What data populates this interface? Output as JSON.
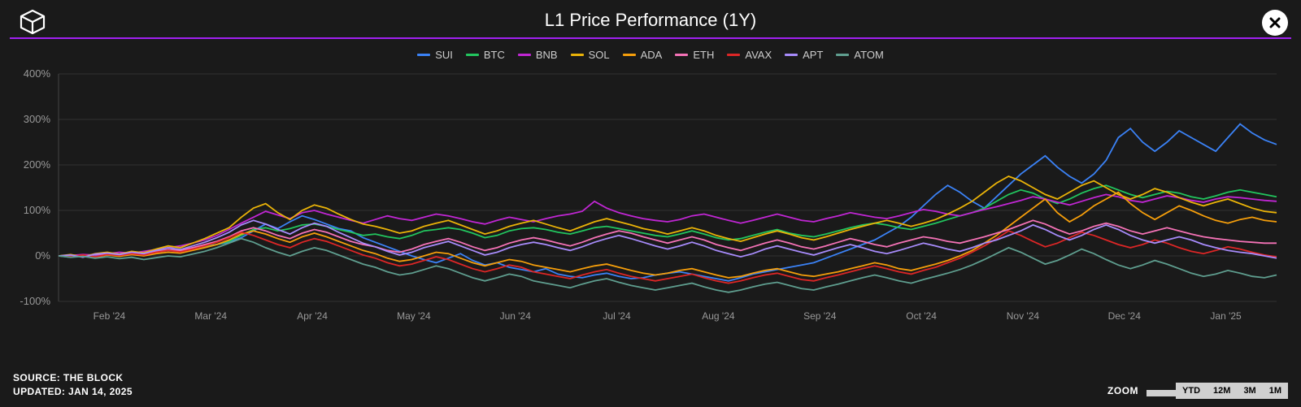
{
  "title": "L1 Price Performance (1Y)",
  "divider_color": "#a020f0",
  "background_color": "#1a1a1a",
  "chart": {
    "type": "line",
    "ylim": [
      -100,
      400
    ],
    "ytick_step": 100,
    "y_ticks": [
      -100,
      0,
      100,
      200,
      300,
      400
    ],
    "y_tick_labels": [
      "-100%",
      "0%",
      "100%",
      "200%",
      "300%",
      "400%"
    ],
    "x_labels": [
      "Feb '24",
      "Mar '24",
      "Apr '24",
      "May '24",
      "Jun '24",
      "Jul '24",
      "Aug '24",
      "Sep '24",
      "Oct '24",
      "Nov '24",
      "Dec '24",
      "Jan '25"
    ],
    "grid_color": "#333333",
    "axis_color": "#444444",
    "tick_label_color": "#999999",
    "line_width": 1.8,
    "series": [
      {
        "name": "SUI",
        "color": "#3b82f6",
        "data": [
          0,
          -3,
          2,
          -1,
          5,
          3,
          8,
          5,
          10,
          14,
          12,
          18,
          22,
          25,
          30,
          40,
          55,
          70,
          60,
          75,
          88,
          80,
          70,
          60,
          55,
          40,
          30,
          20,
          10,
          0,
          -8,
          -15,
          -5,
          5,
          -10,
          -20,
          -15,
          -25,
          -30,
          -35,
          -28,
          -40,
          -45,
          -48,
          -42,
          -38,
          -45,
          -50,
          -48,
          -42,
          -38,
          -35,
          -40,
          -45,
          -50,
          -55,
          -48,
          -40,
          -35,
          -30,
          -25,
          -20,
          -15,
          -5,
          5,
          15,
          25,
          35,
          50,
          65,
          85,
          110,
          135,
          155,
          140,
          120,
          105,
          130,
          155,
          180,
          200,
          220,
          195,
          175,
          160,
          180,
          210,
          260,
          280,
          250,
          230,
          250,
          275,
          260,
          245,
          230,
          260,
          290,
          270,
          255,
          245
        ]
      },
      {
        "name": "BTC",
        "color": "#22c55e",
        "data": [
          0,
          2,
          -1,
          3,
          5,
          2,
          6,
          4,
          8,
          12,
          10,
          15,
          20,
          25,
          32,
          45,
          58,
          62,
          55,
          60,
          68,
          70,
          65,
          58,
          52,
          45,
          48,
          42,
          38,
          45,
          55,
          58,
          62,
          58,
          50,
          40,
          45,
          55,
          60,
          62,
          58,
          52,
          48,
          55,
          62,
          65,
          60,
          55,
          50,
          45,
          42,
          48,
          55,
          48,
          40,
          35,
          38,
          45,
          52,
          58,
          50,
          45,
          42,
          48,
          55,
          62,
          68,
          72,
          68,
          62,
          58,
          65,
          72,
          80,
          88,
          95,
          105,
          120,
          135,
          145,
          138,
          125,
          115,
          125,
          138,
          148,
          155,
          145,
          135,
          128,
          135,
          142,
          138,
          130,
          125,
          132,
          140,
          145,
          140,
          135,
          130
        ]
      },
      {
        "name": "BNB",
        "color": "#c026d3",
        "data": [
          0,
          1,
          3,
          2,
          5,
          8,
          6,
          10,
          14,
          18,
          22,
          28,
          35,
          45,
          58,
          72,
          85,
          98,
          90,
          82,
          95,
          100,
          92,
          85,
          78,
          72,
          80,
          88,
          82,
          78,
          85,
          92,
          88,
          82,
          75,
          70,
          78,
          85,
          80,
          75,
          82,
          88,
          92,
          98,
          120,
          105,
          95,
          88,
          82,
          78,
          75,
          80,
          88,
          92,
          85,
          78,
          72,
          78,
          85,
          92,
          85,
          78,
          75,
          82,
          88,
          95,
          90,
          85,
          82,
          88,
          95,
          102,
          98,
          92,
          88,
          95,
          102,
          108,
          115,
          122,
          130,
          125,
          118,
          112,
          120,
          128,
          135,
          130,
          122,
          118,
          125,
          132,
          128,
          122,
          118,
          125,
          130,
          128,
          125,
          122,
          120
        ]
      },
      {
        "name": "SOL",
        "color": "#eab308",
        "data": [
          0,
          3,
          -2,
          5,
          8,
          4,
          10,
          7,
          15,
          22,
          18,
          28,
          38,
          50,
          62,
          85,
          105,
          115,
          95,
          80,
          100,
          112,
          105,
          92,
          80,
          70,
          65,
          58,
          50,
          55,
          65,
          72,
          78,
          68,
          58,
          48,
          55,
          65,
          72,
          78,
          70,
          62,
          55,
          65,
          75,
          82,
          75,
          68,
          60,
          55,
          48,
          55,
          62,
          55,
          45,
          38,
          32,
          40,
          48,
          55,
          48,
          40,
          35,
          42,
          50,
          58,
          65,
          72,
          78,
          72,
          65,
          72,
          80,
          92,
          105,
          120,
          140,
          160,
          175,
          165,
          150,
          135,
          125,
          140,
          155,
          165,
          150,
          135,
          125,
          135,
          148,
          140,
          128,
          118,
          110,
          118,
          125,
          115,
          105,
          98,
          95
        ]
      },
      {
        "name": "ADA",
        "color": "#f59e0b",
        "data": [
          0,
          -2,
          1,
          -3,
          2,
          -1,
          3,
          0,
          5,
          8,
          6,
          12,
          18,
          25,
          35,
          48,
          55,
          48,
          38,
          30,
          42,
          50,
          42,
          32,
          22,
          12,
          5,
          -5,
          -12,
          -8,
          0,
          8,
          5,
          -5,
          -15,
          -22,
          -15,
          -8,
          -12,
          -20,
          -25,
          -30,
          -35,
          -28,
          -22,
          -18,
          -25,
          -32,
          -38,
          -42,
          -38,
          -32,
          -28,
          -35,
          -42,
          -48,
          -45,
          -38,
          -32,
          -28,
          -35,
          -42,
          -45,
          -40,
          -35,
          -28,
          -22,
          -15,
          -20,
          -28,
          -32,
          -25,
          -18,
          -10,
          0,
          12,
          28,
          45,
          65,
          85,
          105,
          125,
          95,
          75,
          90,
          110,
          125,
          140,
          115,
          95,
          80,
          95,
          110,
          100,
          88,
          78,
          72,
          80,
          85,
          78,
          75
        ]
      },
      {
        "name": "ETH",
        "color": "#f472b6",
        "data": [
          0,
          1,
          -2,
          3,
          5,
          2,
          6,
          4,
          9,
          14,
          11,
          18,
          25,
          32,
          42,
          55,
          62,
          55,
          45,
          38,
          50,
          58,
          52,
          42,
          32,
          25,
          20,
          12,
          8,
          15,
          25,
          32,
          38,
          30,
          20,
          12,
          18,
          28,
          35,
          40,
          35,
          28,
          22,
          30,
          40,
          48,
          55,
          50,
          42,
          35,
          28,
          35,
          42,
          35,
          25,
          18,
          12,
          20,
          28,
          35,
          28,
          20,
          15,
          22,
          30,
          38,
          32,
          25,
          20,
          28,
          35,
          42,
          38,
          32,
          28,
          35,
          42,
          50,
          58,
          68,
          78,
          70,
          58,
          48,
          55,
          65,
          72,
          65,
          55,
          48,
          55,
          62,
          55,
          48,
          42,
          38,
          35,
          32,
          30,
          28,
          28
        ]
      },
      {
        "name": "AVAX",
        "color": "#dc2626",
        "data": [
          0,
          -1,
          2,
          -2,
          3,
          1,
          5,
          2,
          8,
          12,
          9,
          15,
          22,
          30,
          40,
          52,
          45,
          35,
          25,
          18,
          30,
          38,
          32,
          22,
          12,
          2,
          -5,
          -15,
          -22,
          -18,
          -10,
          -2,
          -8,
          -18,
          -28,
          -35,
          -28,
          -20,
          -25,
          -35,
          -40,
          -45,
          -50,
          -42,
          -35,
          -30,
          -38,
          -45,
          -50,
          -55,
          -50,
          -45,
          -40,
          -48,
          -55,
          -60,
          -55,
          -48,
          -42,
          -38,
          -45,
          -52,
          -55,
          -48,
          -42,
          -35,
          -28,
          -22,
          -28,
          -35,
          -40,
          -32,
          -25,
          -15,
          -5,
          8,
          22,
          38,
          55,
          45,
          32,
          20,
          28,
          40,
          52,
          45,
          35,
          25,
          18,
          25,
          35,
          28,
          18,
          10,
          5,
          12,
          20,
          15,
          8,
          2,
          -2
        ]
      },
      {
        "name": "APT",
        "color": "#a78bfa",
        "data": [
          0,
          2,
          -3,
          4,
          6,
          3,
          8,
          5,
          12,
          18,
          14,
          22,
          30,
          40,
          52,
          68,
          78,
          70,
          58,
          48,
          62,
          72,
          65,
          52,
          40,
          28,
          20,
          10,
          2,
          8,
          18,
          25,
          32,
          22,
          12,
          2,
          8,
          18,
          25,
          30,
          25,
          18,
          12,
          20,
          30,
          38,
          45,
          38,
          30,
          22,
          15,
          22,
          30,
          22,
          12,
          5,
          -2,
          5,
          15,
          22,
          15,
          8,
          2,
          10,
          18,
          25,
          18,
          10,
          5,
          12,
          20,
          28,
          22,
          15,
          10,
          18,
          28,
          35,
          45,
          55,
          68,
          58,
          45,
          35,
          45,
          58,
          68,
          58,
          45,
          35,
          28,
          35,
          42,
          35,
          25,
          18,
          12,
          8,
          5,
          0,
          -5
        ]
      },
      {
        "name": "ATOM",
        "color": "#5f9e8f",
        "data": [
          0,
          -3,
          -1,
          -5,
          -2,
          -6,
          -3,
          -8,
          -4,
          0,
          -2,
          4,
          10,
          18,
          28,
          38,
          30,
          18,
          8,
          0,
          10,
          18,
          12,
          2,
          -8,
          -18,
          -25,
          -35,
          -42,
          -38,
          -30,
          -22,
          -28,
          -38,
          -48,
          -55,
          -48,
          -40,
          -45,
          -55,
          -60,
          -65,
          -70,
          -62,
          -55,
          -50,
          -58,
          -65,
          -70,
          -75,
          -70,
          -65,
          -60,
          -68,
          -75,
          -80,
          -75,
          -68,
          -62,
          -58,
          -65,
          -72,
          -75,
          -68,
          -62,
          -55,
          -48,
          -42,
          -48,
          -55,
          -60,
          -52,
          -45,
          -38,
          -30,
          -20,
          -8,
          5,
          18,
          8,
          -5,
          -18,
          -10,
          2,
          15,
          5,
          -8,
          -20,
          -28,
          -20,
          -10,
          -18,
          -28,
          -38,
          -45,
          -40,
          -32,
          -38,
          -45,
          -48,
          -42
        ]
      }
    ]
  },
  "legend_items": [
    {
      "label": "SUI",
      "color": "#3b82f6"
    },
    {
      "label": "BTC",
      "color": "#22c55e"
    },
    {
      "label": "BNB",
      "color": "#c026d3"
    },
    {
      "label": "SOL",
      "color": "#eab308"
    },
    {
      "label": "ADA",
      "color": "#f59e0b"
    },
    {
      "label": "ETH",
      "color": "#f472b6"
    },
    {
      "label": "AVAX",
      "color": "#dc2626"
    },
    {
      "label": "APT",
      "color": "#a78bfa"
    },
    {
      "label": "ATOM",
      "color": "#5f9e8f"
    }
  ],
  "footer": {
    "source_label": "SOURCE: THE BLOCK",
    "updated_label": "UPDATED: JAN 14, 2025",
    "zoom_label": "ZOOM",
    "zoom_buttons": [
      "",
      "YTD",
      "12M",
      "3M",
      "1M"
    ]
  }
}
